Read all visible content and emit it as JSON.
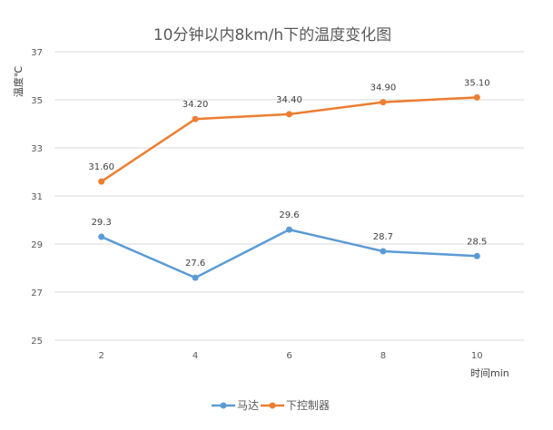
{
  "chart_data": {
    "type": "line",
    "title": "10分钟以内8km/h下的温度变化图",
    "xlabel": "时间min",
    "ylabel": "温度℃",
    "categories": [
      "2",
      "4",
      "6",
      "8",
      "10"
    ],
    "ylim": [
      25,
      37
    ],
    "yticks": [
      25,
      27,
      29,
      31,
      33,
      35,
      37
    ],
    "grid": true,
    "legend": "bottom",
    "series": [
      {
        "name": "马达",
        "color": "#5b9bd5",
        "values": [
          29.3,
          27.6,
          29.6,
          28.7,
          28.5
        ],
        "labels": [
          "29.3",
          "27.6",
          "29.6",
          "28.7",
          "28.5"
        ]
      },
      {
        "name": "下控制器",
        "color": "#ed7d31",
        "values": [
          31.6,
          34.2,
          34.4,
          34.9,
          35.1
        ],
        "labels": [
          "31.60",
          "34.20",
          "34.40",
          "34.90",
          "35.10"
        ]
      }
    ]
  }
}
